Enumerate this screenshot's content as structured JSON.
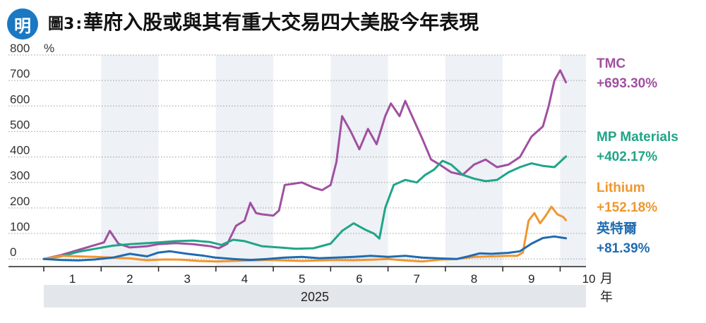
{
  "header": {
    "logo_char": "明",
    "figure_label": "圖3",
    "separator": ":",
    "title": "華府入股或與其有重大交易四大美股今年表現"
  },
  "chart_data": {
    "type": "line",
    "title": "華府入股或與其有重大交易四大美股今年表現",
    "ylabel": "%",
    "ylim": [
      -30,
      800
    ],
    "yticks": [
      0,
      100,
      200,
      300,
      400,
      500,
      600,
      700,
      800
    ],
    "ytick_labels": [
      "0",
      "100",
      "200",
      "300",
      "400",
      "500",
      "600",
      "700",
      "800"
    ],
    "xlim": [
      1,
      10.45
    ],
    "xticks": [
      1,
      2,
      3,
      4,
      5,
      6,
      7,
      8,
      9,
      10
    ],
    "xtick_labels": [
      "1",
      "2",
      "3",
      "4",
      "5",
      "6",
      "7",
      "8",
      "9",
      "10"
    ],
    "x_unit_label": "月",
    "year_label": "2025",
    "year_unit_label": "年",
    "grid": true,
    "series": [
      {
        "name": "TMC",
        "final_label": "+693.30%",
        "color": "#a050a0",
        "points": [
          [
            1,
            0
          ],
          [
            1.3,
            15
          ],
          [
            1.6,
            35
          ],
          [
            1.9,
            55
          ],
          [
            2.05,
            65
          ],
          [
            2.15,
            110
          ],
          [
            2.3,
            60
          ],
          [
            2.5,
            45
          ],
          [
            2.8,
            50
          ],
          [
            3.0,
            58
          ],
          [
            3.3,
            62
          ],
          [
            3.6,
            58
          ],
          [
            3.9,
            50
          ],
          [
            4.05,
            42
          ],
          [
            4.2,
            60
          ],
          [
            4.35,
            130
          ],
          [
            4.5,
            150
          ],
          [
            4.6,
            220
          ],
          [
            4.7,
            180
          ],
          [
            4.8,
            175
          ],
          [
            5.0,
            170
          ],
          [
            5.1,
            190
          ],
          [
            5.2,
            290
          ],
          [
            5.35,
            295
          ],
          [
            5.5,
            300
          ],
          [
            5.7,
            280
          ],
          [
            5.85,
            270
          ],
          [
            6.0,
            290
          ],
          [
            6.1,
            380
          ],
          [
            6.2,
            560
          ],
          [
            6.35,
            500
          ],
          [
            6.5,
            430
          ],
          [
            6.65,
            510
          ],
          [
            6.8,
            450
          ],
          [
            6.95,
            560
          ],
          [
            7.05,
            610
          ],
          [
            7.2,
            560
          ],
          [
            7.3,
            620
          ],
          [
            7.4,
            570
          ],
          [
            7.6,
            470
          ],
          [
            7.75,
            390
          ],
          [
            7.9,
            370
          ],
          [
            8.1,
            340
          ],
          [
            8.3,
            330
          ],
          [
            8.5,
            370
          ],
          [
            8.7,
            390
          ],
          [
            8.9,
            360
          ],
          [
            9.1,
            370
          ],
          [
            9.3,
            400
          ],
          [
            9.5,
            480
          ],
          [
            9.7,
            520
          ],
          [
            9.8,
            600
          ],
          [
            9.9,
            700
          ],
          [
            10.0,
            740
          ],
          [
            10.1,
            693
          ]
        ]
      },
      {
        "name": "MP Materials",
        "final_label": "+402.17%",
        "color": "#1fa588",
        "points": [
          [
            1,
            0
          ],
          [
            1.3,
            10
          ],
          [
            1.6,
            28
          ],
          [
            1.9,
            40
          ],
          [
            2.2,
            52
          ],
          [
            2.5,
            58
          ],
          [
            2.8,
            62
          ],
          [
            3.0,
            65
          ],
          [
            3.3,
            70
          ],
          [
            3.6,
            72
          ],
          [
            3.9,
            66
          ],
          [
            4.1,
            55
          ],
          [
            4.3,
            75
          ],
          [
            4.5,
            70
          ],
          [
            4.8,
            50
          ],
          [
            5.1,
            45
          ],
          [
            5.4,
            40
          ],
          [
            5.7,
            42
          ],
          [
            6.0,
            60
          ],
          [
            6.2,
            110
          ],
          [
            6.4,
            140
          ],
          [
            6.6,
            115
          ],
          [
            6.75,
            100
          ],
          [
            6.85,
            80
          ],
          [
            6.95,
            200
          ],
          [
            7.1,
            290
          ],
          [
            7.3,
            310
          ],
          [
            7.5,
            300
          ],
          [
            7.65,
            330
          ],
          [
            7.8,
            350
          ],
          [
            7.95,
            385
          ],
          [
            8.1,
            370
          ],
          [
            8.3,
            330
          ],
          [
            8.5,
            315
          ],
          [
            8.7,
            305
          ],
          [
            8.9,
            310
          ],
          [
            9.1,
            340
          ],
          [
            9.3,
            360
          ],
          [
            9.5,
            375
          ],
          [
            9.7,
            365
          ],
          [
            9.9,
            360
          ],
          [
            10.1,
            402
          ]
        ]
      },
      {
        "name": "Lithium",
        "final_label": "+152.18%",
        "color": "#f0962e",
        "points": [
          [
            1,
            0
          ],
          [
            1.3,
            12
          ],
          [
            1.6,
            10
          ],
          [
            1.9,
            8
          ],
          [
            2.2,
            5
          ],
          [
            2.5,
            2
          ],
          [
            2.8,
            -5
          ],
          [
            3.1,
            -2
          ],
          [
            3.4,
            -3
          ],
          [
            3.7,
            -8
          ],
          [
            4.0,
            -10
          ],
          [
            4.3,
            -8
          ],
          [
            4.6,
            -6
          ],
          [
            4.9,
            -4
          ],
          [
            5.2,
            -6
          ],
          [
            5.5,
            -8
          ],
          [
            5.8,
            -6
          ],
          [
            6.1,
            -4
          ],
          [
            6.4,
            -5
          ],
          [
            6.7,
            -3
          ],
          [
            7.0,
            0
          ],
          [
            7.3,
            -6
          ],
          [
            7.6,
            -10
          ],
          [
            7.9,
            -3
          ],
          [
            8.2,
            0
          ],
          [
            8.5,
            8
          ],
          [
            8.8,
            10
          ],
          [
            9.1,
            12
          ],
          [
            9.25,
            12
          ],
          [
            9.35,
            25
          ],
          [
            9.45,
            150
          ],
          [
            9.55,
            180
          ],
          [
            9.65,
            140
          ],
          [
            9.75,
            170
          ],
          [
            9.85,
            205
          ],
          [
            9.95,
            175
          ],
          [
            10.05,
            165
          ],
          [
            10.1,
            152
          ]
        ]
      },
      {
        "name": "英特爾",
        "final_label": "+81.39%",
        "color": "#1f6bb0",
        "points": [
          [
            1,
            0
          ],
          [
            1.3,
            -4
          ],
          [
            1.6,
            -6
          ],
          [
            1.9,
            -2
          ],
          [
            2.2,
            5
          ],
          [
            2.5,
            20
          ],
          [
            2.8,
            10
          ],
          [
            3.0,
            25
          ],
          [
            3.2,
            30
          ],
          [
            3.5,
            20
          ],
          [
            3.8,
            12
          ],
          [
            4.0,
            5
          ],
          [
            4.3,
            0
          ],
          [
            4.6,
            -4
          ],
          [
            4.9,
            0
          ],
          [
            5.2,
            5
          ],
          [
            5.5,
            8
          ],
          [
            5.8,
            3
          ],
          [
            6.1,
            5
          ],
          [
            6.4,
            8
          ],
          [
            6.7,
            12
          ],
          [
            7.0,
            8
          ],
          [
            7.3,
            12
          ],
          [
            7.6,
            5
          ],
          [
            7.9,
            2
          ],
          [
            8.2,
            0
          ],
          [
            8.4,
            10
          ],
          [
            8.6,
            22
          ],
          [
            8.8,
            20
          ],
          [
            9.1,
            24
          ],
          [
            9.3,
            30
          ],
          [
            9.5,
            60
          ],
          [
            9.7,
            82
          ],
          [
            9.9,
            88
          ],
          [
            10.1,
            81
          ]
        ]
      }
    ]
  }
}
